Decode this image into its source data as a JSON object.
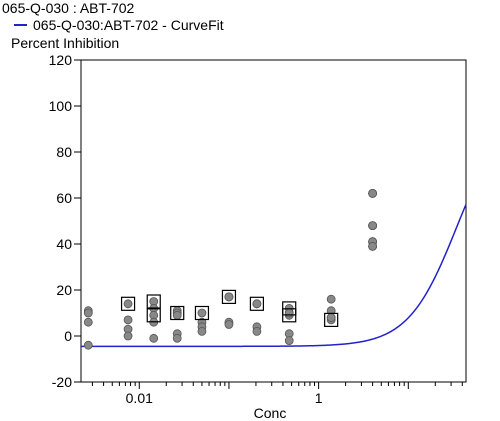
{
  "chart_data": {
    "type": "scatter",
    "title": "065-Q-030  : ABT-702",
    "ylabel": "Percent Inhibition",
    "xlabel": "Conc",
    "x_scale": "log",
    "xlim": [
      0.00224,
      44
    ],
    "ylim": [
      -20,
      120
    ],
    "y_ticks": [
      -20,
      0,
      20,
      40,
      60,
      80,
      100,
      120
    ],
    "x_ticks": [
      0.01,
      1
    ],
    "x_tick_labels": [
      "0.01",
      "1"
    ],
    "grid": false,
    "legend_position": "top-left",
    "series": [
      {
        "name": "065-Q-030:ABT-702 - CurveFit",
        "kind": "curve",
        "color": "#2222cc",
        "bottom": -4.5,
        "top": 100,
        "ic50": 35,
        "hill": 1.6
      },
      {
        "kind": "points",
        "marker": "circle",
        "color": "#888888",
        "x": [
          0.0027,
          0.0027,
          0.0027,
          0.0027,
          0.0075,
          0.0075,
          0.0075,
          0.0075,
          0.0145,
          0.0145,
          0.0145,
          0.0145,
          0.0145,
          0.0265,
          0.0265,
          0.0265,
          0.0265,
          0.0265,
          0.05,
          0.05,
          0.05,
          0.05,
          0.1,
          0.1,
          0.1,
          0.1,
          0.1,
          0.205,
          0.205,
          0.205,
          0.205,
          0.47,
          0.47,
          0.47,
          0.47,
          0.47,
          1.38,
          1.38,
          1.38,
          1.38,
          1.38,
          4.0,
          4.0,
          4.0,
          4.0,
          4.0,
          4.0,
          4.0,
          4.0,
          4.0,
          4.0,
          4.0,
          4.0
        ],
        "y": [
          11,
          10,
          6,
          -4,
          14,
          7,
          3,
          0,
          15,
          12,
          9,
          6,
          -1,
          11,
          10,
          9,
          1,
          -1,
          10,
          6,
          4,
          2,
          17,
          6,
          5,
          17,
          17,
          14,
          4,
          2,
          14,
          12,
          9,
          1,
          -2,
          10,
          16,
          11,
          8,
          7,
          8,
          62,
          48,
          41,
          39,
          62,
          48,
          41,
          39,
          62,
          48,
          41,
          39
        ]
      },
      {
        "kind": "points",
        "marker": "square",
        "color": "#000000",
        "x": [
          0.0075,
          0.0145,
          0.0145,
          0.0265,
          0.05,
          0.1,
          0.205,
          0.47,
          0.47,
          1.38
        ],
        "y": [
          14,
          15,
          9,
          10,
          10,
          17,
          14,
          12,
          9,
          7
        ]
      }
    ]
  }
}
